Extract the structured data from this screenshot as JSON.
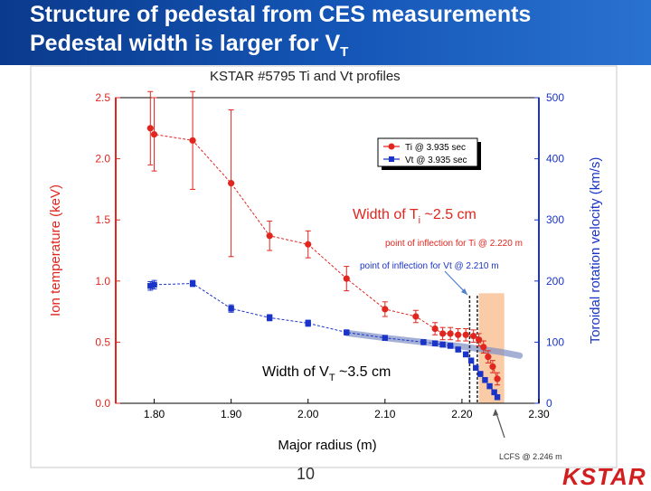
{
  "header": {
    "line1": "Structure of pedestal from CES measurements",
    "line2_text": "Pedestal width is larger for V",
    "line2_sub": "T"
  },
  "footer": {
    "page_number": "10",
    "logo_text": "KSTAR"
  },
  "colors": {
    "header_bg": "#1557b8",
    "ti": "#e0261e",
    "vt": "#1a33c8",
    "highlight": "#f7b98a",
    "fit_band": "#7f8fc4"
  },
  "chart_data": {
    "type": "scatter",
    "title": "KSTAR #5795 Ti and Vt profiles",
    "xlabel": "Major radius (m)",
    "ylabel_left": "Ion temperature (keV)",
    "ylabel_right": "Toroidal rotation velocity (km/s)",
    "xlim": [
      1.75,
      2.3
    ],
    "ylim_left": [
      0.0,
      2.5
    ],
    "ylim_right": [
      0,
      500
    ],
    "x_ticks": [
      "1.80",
      "1.90",
      "2.00",
      "2.10",
      "2.20",
      "2.30"
    ],
    "y_ticks_left": [
      "0.0",
      "0.5",
      "1.0",
      "1.5",
      "2.0",
      "2.5"
    ],
    "y_ticks_right": [
      "0",
      "100",
      "200",
      "300",
      "400",
      "500"
    ],
    "legend": {
      "position": "top-right",
      "entries": [
        "Ti @ 3.935 sec",
        "Vt @ 3.935 sec"
      ]
    },
    "series": [
      {
        "name": "Ti @ 3.935 sec",
        "axis": "left",
        "points": [
          {
            "x": 1.795,
            "y": 2.25,
            "err": 0.3
          },
          {
            "x": 1.8,
            "y": 2.2,
            "err": 0.3
          },
          {
            "x": 1.85,
            "y": 2.15,
            "err": 0.4
          },
          {
            "x": 1.9,
            "y": 1.8,
            "err": 0.6
          },
          {
            "x": 1.95,
            "y": 1.37,
            "err": 0.12
          },
          {
            "x": 2.0,
            "y": 1.3,
            "err": 0.11
          },
          {
            "x": 2.05,
            "y": 1.02,
            "err": 0.1
          },
          {
            "x": 2.1,
            "y": 0.77,
            "err": 0.06
          },
          {
            "x": 2.14,
            "y": 0.71,
            "err": 0.05
          },
          {
            "x": 2.165,
            "y": 0.61,
            "err": 0.05
          },
          {
            "x": 2.175,
            "y": 0.57,
            "err": 0.05
          },
          {
            "x": 2.185,
            "y": 0.57,
            "err": 0.05
          },
          {
            "x": 2.195,
            "y": 0.56,
            "err": 0.05
          },
          {
            "x": 2.205,
            "y": 0.56,
            "err": 0.05
          },
          {
            "x": 2.215,
            "y": 0.55,
            "err": 0.05
          },
          {
            "x": 2.222,
            "y": 0.52,
            "err": 0.05
          },
          {
            "x": 2.228,
            "y": 0.46,
            "err": 0.05
          },
          {
            "x": 2.234,
            "y": 0.38,
            "err": 0.05
          },
          {
            "x": 2.24,
            "y": 0.3,
            "err": 0.05
          },
          {
            "x": 2.246,
            "y": 0.2,
            "err": 0.05
          }
        ]
      },
      {
        "name": "Vt @ 3.935 sec",
        "axis": "right",
        "points": [
          {
            "x": 1.795,
            "y": 192,
            "err": 7
          },
          {
            "x": 1.8,
            "y": 194,
            "err": 7
          },
          {
            "x": 1.85,
            "y": 196,
            "err": 5
          },
          {
            "x": 1.9,
            "y": 155,
            "err": 6
          },
          {
            "x": 1.95,
            "y": 140,
            "err": 5
          },
          {
            "x": 2.0,
            "y": 131,
            "err": 5
          },
          {
            "x": 2.05,
            "y": 116,
            "err": 4
          },
          {
            "x": 2.1,
            "y": 107,
            "err": 4
          },
          {
            "x": 2.15,
            "y": 100,
            "err": 4
          },
          {
            "x": 2.165,
            "y": 98,
            "err": 4
          },
          {
            "x": 2.175,
            "y": 96,
            "err": 4
          },
          {
            "x": 2.185,
            "y": 94,
            "err": 4
          },
          {
            "x": 2.195,
            "y": 88,
            "err": 4
          },
          {
            "x": 2.205,
            "y": 80,
            "err": 4
          },
          {
            "x": 2.212,
            "y": 70,
            "err": 4
          },
          {
            "x": 2.218,
            "y": 58,
            "err": 4
          },
          {
            "x": 2.224,
            "y": 48,
            "err": 4
          },
          {
            "x": 2.23,
            "y": 38,
            "err": 4
          },
          {
            "x": 2.236,
            "y": 28,
            "err": 4
          },
          {
            "x": 2.242,
            "y": 18,
            "err": 4
          },
          {
            "x": 2.246,
            "y": 10,
            "err": 4
          }
        ]
      }
    ],
    "fit_band": {
      "name": "Vt fit",
      "axis": "right",
      "points": [
        {
          "x": 2.05,
          "y": 115
        },
        {
          "x": 2.1,
          "y": 107
        },
        {
          "x": 2.15,
          "y": 100
        },
        {
          "x": 2.2,
          "y": 93
        },
        {
          "x": 2.25,
          "y": 84
        },
        {
          "x": 2.275,
          "y": 78
        }
      ]
    },
    "highlight_region": {
      "x_start": 2.222,
      "x_end": 2.255
    },
    "inflection_lines": [
      {
        "label": "point of inflection for Ti @ 2.220 m",
        "x": 2.22
      },
      {
        "label": "point of inflection for Vt @ 2.210 m",
        "x": 2.21
      }
    ],
    "annotations": {
      "ti_width_text": "Width of T",
      "ti_width_sub": "i",
      "ti_width_suffix": " ~2.5 cm",
      "vt_width_text": "Width of V",
      "vt_width_sub": "T",
      "vt_width_suffix": " ~3.5 cm",
      "lcfs": "LCFS @ 2.246 m"
    }
  }
}
